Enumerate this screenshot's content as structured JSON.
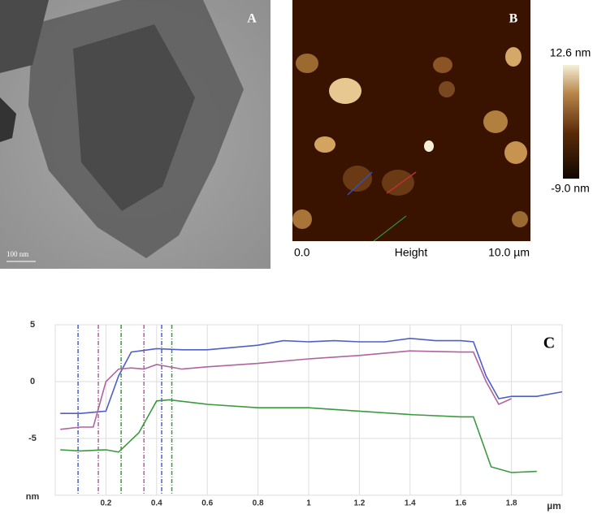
{
  "panels": {
    "a": {
      "label": "A",
      "scale_bar": "100 nm"
    },
    "b": {
      "label": "B",
      "colorbar_max": "12.6 nm",
      "colorbar_min": "-9.0 nm",
      "x_start": "0.0",
      "x_label": "Height",
      "x_end": "10.0 µm"
    }
  },
  "chart_data": {
    "type": "line",
    "label": "C",
    "y_unit": "nm",
    "x_unit": "µm",
    "xlim": [
      0,
      2
    ],
    "ylim": [
      -10,
      5
    ],
    "xticks": [
      0.2,
      0.4,
      0.6,
      0.8,
      1,
      1.2,
      1.4,
      1.6,
      1.8
    ],
    "yticks": [
      -5,
      0,
      5
    ],
    "grid": true,
    "series": [
      {
        "color": "#4f5fc8",
        "x": [
          0.02,
          0.1,
          0.2,
          0.25,
          0.3,
          0.4,
          0.5,
          0.6,
          0.8,
          0.9,
          1.0,
          1.1,
          1.2,
          1.3,
          1.4,
          1.5,
          1.6,
          1.65,
          1.7,
          1.75,
          1.8,
          1.9,
          2.0
        ],
        "values": [
          -2.8,
          -2.8,
          -2.6,
          0.5,
          2.6,
          2.9,
          2.8,
          2.8,
          3.2,
          3.6,
          3.5,
          3.6,
          3.5,
          3.5,
          3.8,
          3.6,
          3.6,
          3.5,
          0.5,
          -1.5,
          -1.3,
          -1.3,
          -0.9
        ]
      },
      {
        "color": "#b0649c",
        "x": [
          0.02,
          0.1,
          0.15,
          0.2,
          0.25,
          0.3,
          0.35,
          0.4,
          0.5,
          0.6,
          0.8,
          1.0,
          1.2,
          1.4,
          1.6,
          1.65,
          1.7,
          1.75,
          1.8
        ],
        "values": [
          -4.2,
          -4,
          -4,
          0,
          1.1,
          1.2,
          1.1,
          1.5,
          1.1,
          1.3,
          1.6,
          2,
          2.3,
          2.7,
          2.6,
          2.6,
          0,
          -2,
          -1.5
        ]
      },
      {
        "color": "#3a9a3e",
        "x": [
          0.02,
          0.1,
          0.2,
          0.25,
          0.33,
          0.4,
          0.45,
          0.6,
          0.8,
          1.0,
          1.2,
          1.4,
          1.6,
          1.65,
          1.72,
          1.8,
          1.9
        ],
        "values": [
          -6,
          -6.1,
          -6,
          -6.2,
          -4.5,
          -1.7,
          -1.6,
          -2,
          -2.3,
          -2.3,
          -2.6,
          -2.9,
          -3.1,
          -3.1,
          -7.5,
          -8,
          -7.9
        ]
      }
    ],
    "markers": [
      {
        "x": 0.09,
        "color": "#4f5fc8"
      },
      {
        "x": 0.17,
        "color": "#b0649c"
      },
      {
        "x": 0.26,
        "color": "#3a9a3e"
      },
      {
        "x": 0.35,
        "color": "#b0649c"
      },
      {
        "x": 0.42,
        "color": "#4f5fc8"
      },
      {
        "x": 0.46,
        "color": "#3a9a3e"
      }
    ]
  }
}
